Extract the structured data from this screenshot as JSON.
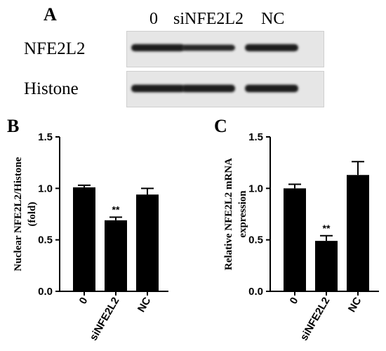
{
  "panel_a": {
    "letter": "A",
    "lanes": [
      "0",
      "siNFE2L2",
      "NC"
    ],
    "rows": [
      {
        "label": "NFE2L2",
        "intensity": [
          0.85,
          0.72,
          0.85
        ]
      },
      {
        "label": "Histone",
        "intensity": [
          0.9,
          0.9,
          0.9
        ]
      }
    ]
  },
  "chart_data": [
    {
      "panel": "B",
      "type": "bar",
      "categories": [
        "0",
        "siNFE2L2",
        "NC"
      ],
      "values": [
        1.01,
        0.69,
        0.94
      ],
      "errors": [
        0.02,
        0.03,
        0.06
      ],
      "annotations": [
        "",
        "**",
        ""
      ],
      "title": "",
      "xlabel": "",
      "ylabel_lines": [
        "Nuclear NFE2L2/Histone",
        "(fold)"
      ],
      "ylim": [
        0,
        1.5
      ],
      "yticks": [
        "0.0",
        "0.5",
        "1.0",
        "1.5"
      ],
      "grid": false
    },
    {
      "panel": "C",
      "type": "bar",
      "categories": [
        "0",
        "siNFE2L2",
        "NC"
      ],
      "values": [
        1.0,
        0.49,
        1.13
      ],
      "errors": [
        0.04,
        0.05,
        0.13
      ],
      "annotations": [
        "",
        "**",
        ""
      ],
      "title": "",
      "xlabel": "",
      "ylabel_lines": [
        "Relative NFE2L2 mRNA",
        "expression"
      ],
      "ylim": [
        0,
        1.5
      ],
      "yticks": [
        "0.0",
        "0.5",
        "1.0",
        "1.5"
      ],
      "grid": false
    }
  ]
}
